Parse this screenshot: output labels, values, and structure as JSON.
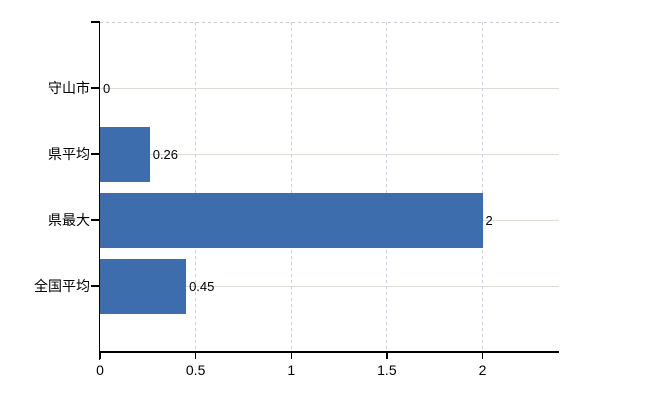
{
  "page": {
    "background": "#ffffff"
  },
  "chart_data": {
    "type": "bar",
    "orientation": "horizontal",
    "title": "",
    "xlabel": "",
    "ylabel": "",
    "categories": [
      "守山市",
      "県平均",
      "県最大",
      "全国平均"
    ],
    "values": [
      0,
      0.26,
      2,
      0.45
    ],
    "value_labels": [
      "0",
      "0.26",
      "2",
      "0.45"
    ],
    "xlim": [
      0,
      2.4
    ],
    "xticks": [
      0,
      0.5,
      1,
      1.5,
      2
    ],
    "xtick_labels": [
      "0",
      "0.5",
      "1",
      "1.5",
      "2"
    ],
    "grid": true,
    "legend": false,
    "colors": {
      "bar": "#3d6dad",
      "grid_horizontal": "#d8dfd4",
      "grid_vertical": "#cfcfd9",
      "top_border": "#c9c9d1",
      "axis": "#000000",
      "text": "#000000",
      "background": "#ffffff"
    }
  }
}
